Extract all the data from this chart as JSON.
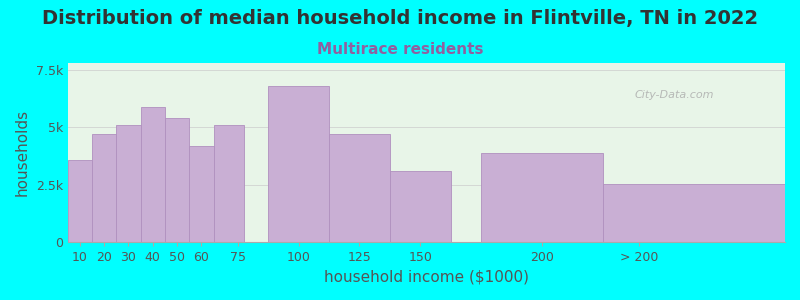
{
  "title": "Distribution of median household income in Flintville, TN in 2022",
  "subtitle": "Multirace residents",
  "xlabel": "household income ($1000)",
  "ylabel": "households",
  "background_color": "#00FFFF",
  "plot_bg_color_left": "#e8f5e8",
  "plot_bg_color_right": "#f5f5f5",
  "bar_color": "#c9afd4",
  "bar_edge_color": "#b090be",
  "bar_left_edges": [
    5,
    15,
    25,
    35,
    45,
    55,
    65,
    87.5,
    112.5,
    137.5,
    175,
    225
  ],
  "bar_widths": [
    10,
    10,
    10,
    10,
    10,
    10,
    12.5,
    25,
    25,
    25,
    50,
    75
  ],
  "values": [
    3600,
    4700,
    5100,
    5900,
    5400,
    4200,
    5100,
    6800,
    4700,
    3100,
    3900,
    2550
  ],
  "xtick_positions": [
    10,
    20,
    30,
    40,
    50,
    60,
    75,
    100,
    125,
    150,
    200,
    240
  ],
  "xtick_labels": [
    "10",
    "20",
    "30",
    "40",
    "50",
    "60",
    "75",
    "100",
    "125",
    "150",
    "200",
    "> 200"
  ],
  "ylim": [
    0,
    7800
  ],
  "yticks": [
    0,
    2500,
    5000,
    7500
  ],
  "ytick_labels": [
    "0",
    "2.5k",
    "5k",
    "7.5k"
  ],
  "xlim": [
    5,
    300
  ],
  "title_fontsize": 14,
  "subtitle_fontsize": 11,
  "subtitle_color": "#9060a0",
  "axis_label_fontsize": 11,
  "tick_fontsize": 9,
  "watermark": "City-Data.com"
}
